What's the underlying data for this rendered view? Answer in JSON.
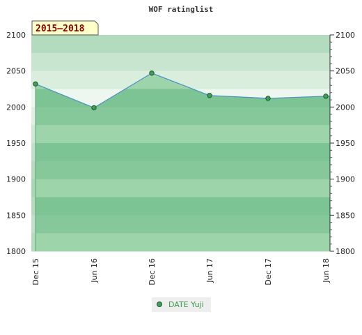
{
  "chart_data": {
    "type": "area",
    "title": "WOF ratinglist",
    "period_label": "2015–2018",
    "categories": [
      "Dec 15",
      "Jun 16",
      "Dec 16",
      "Jun 17",
      "Dec 17",
      "Jun 18"
    ],
    "series": [
      {
        "name": "DATE Yuji",
        "values": [
          2032,
          1999,
          2047,
          2016,
          2012,
          2015
        ]
      }
    ],
    "ylim": [
      1800,
      2100
    ],
    "y_ticks": [
      "1800",
      "1850",
      "1900",
      "1950",
      "2000",
      "2050",
      "2100"
    ],
    "y_axis_sides": "left-and-right",
    "grid": false,
    "legend": "bottom-center",
    "colors": {
      "fill": "#8fcc9f",
      "line": "#4a90c8",
      "marker": "#3f9c5c",
      "band_dark": "#7cc493",
      "band_light": "#9dd4aa"
    }
  }
}
